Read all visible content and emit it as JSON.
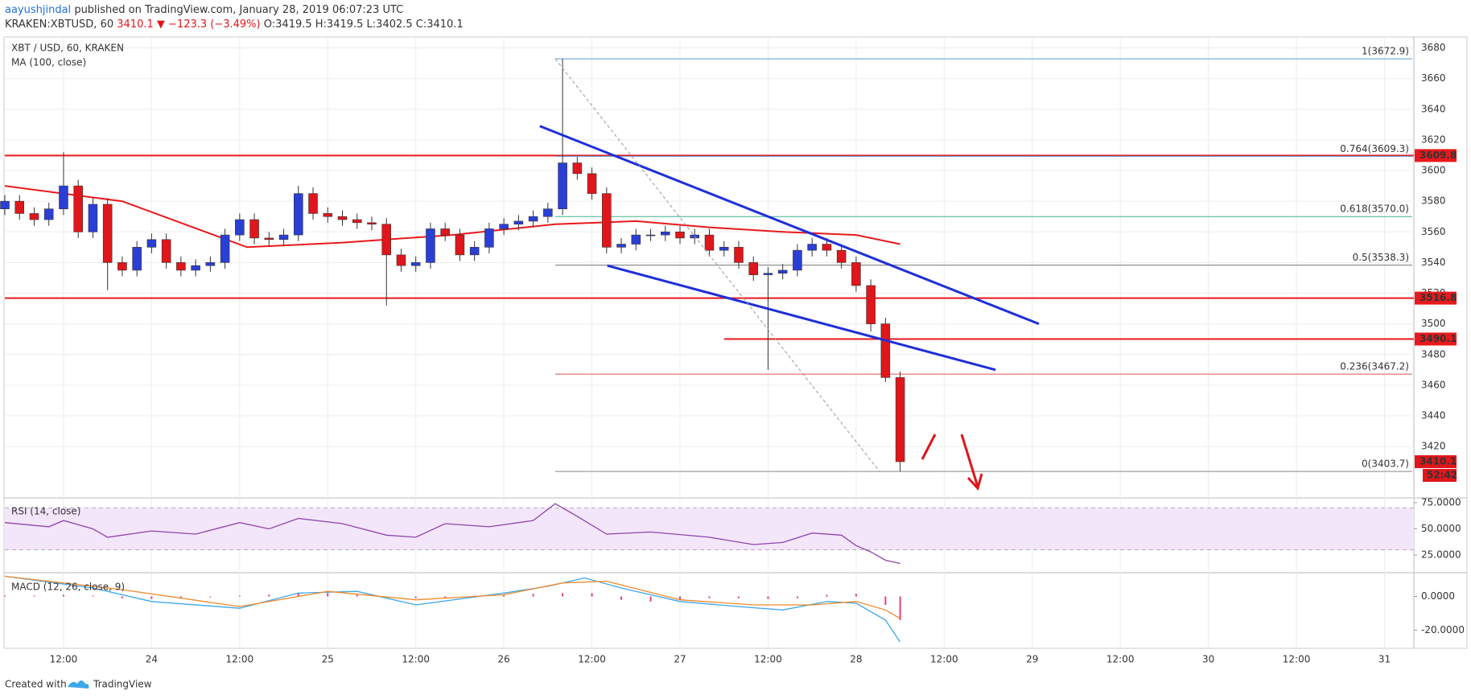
{
  "header": {
    "author": "aayushjindal",
    "published": "published on TradingView.com, January 28, 2019 06:07:23 UTC",
    "symbol": "KRAKEN:XBTUSD, 60",
    "last": "3410.1",
    "change": "▼ −123.3 (−3.49%)",
    "ohlc": "O:3419.5 H:3419.5 L:3402.5 C:3410.1"
  },
  "footer": {
    "created": "Created with",
    "brand": "TradingView"
  },
  "chart_data": {
    "type": "candlestick",
    "title": "XBT / USD, 60, KRAKEN",
    "up_color": "#2a3fd6",
    "down_color": "#e0161b",
    "x": [
      4,
      6,
      8,
      10,
      12,
      14,
      16,
      18,
      20,
      22,
      24,
      26,
      28,
      30,
      32,
      34,
      36,
      38,
      40,
      42,
      44,
      46,
      48,
      50,
      52,
      54,
      56,
      58,
      60,
      62,
      64,
      66,
      68,
      70,
      72,
      74,
      76,
      78,
      80,
      82,
      84,
      86,
      88,
      90,
      92,
      94,
      96,
      98,
      100,
      102,
      104,
      106,
      108,
      110,
      112,
      114,
      116,
      118,
      120,
      122,
      124,
      126
    ],
    "open": [
      3575,
      3580,
      3572,
      3568,
      3575,
      3590,
      3560,
      3578,
      3540,
      3535,
      3550,
      3555,
      3540,
      3535,
      3538,
      3540,
      3558,
      3568,
      3556,
      3555,
      3558,
      3585,
      3572,
      3570,
      3568,
      3566,
      3565,
      3545,
      3538,
      3540,
      3562,
      3558,
      3545,
      3550,
      3562,
      3565,
      3567,
      3570,
      3575,
      3605,
      3598,
      3585,
      3550,
      3552,
      3558,
      3558,
      3560,
      3556,
      3558,
      3548,
      3550,
      3540,
      3532,
      3533,
      3535,
      3548,
      3552,
      3548,
      3540,
      3525,
      3500,
      3465
    ],
    "high": [
      3584,
      3584,
      3576,
      3579,
      3612,
      3594,
      3582,
      3582,
      3544,
      3554,
      3559,
      3559,
      3544,
      3542,
      3544,
      3562,
      3572,
      3572,
      3560,
      3562,
      3590,
      3589,
      3576,
      3574,
      3572,
      3570,
      3569,
      3549,
      3544,
      3566,
      3566,
      3562,
      3554,
      3566,
      3569,
      3571,
      3574,
      3579,
      3672.9,
      3609,
      3602,
      3589,
      3556,
      3562,
      3562,
      3564,
      3564,
      3562,
      3562,
      3554,
      3554,
      3544,
      3537,
      3539,
      3552,
      3556,
      3556,
      3552,
      3544,
      3529,
      3504,
      3469
    ],
    "low": [
      3571,
      3568,
      3564,
      3564,
      3571,
      3556,
      3556,
      3522,
      3531,
      3531,
      3546,
      3536,
      3531,
      3531,
      3534,
      3536,
      3554,
      3552,
      3551,
      3551,
      3554,
      3568,
      3566,
      3564,
      3562,
      3561,
      3512,
      3534,
      3534,
      3536,
      3554,
      3541,
      3541,
      3546,
      3558,
      3561,
      3563,
      3566,
      3571,
      3594,
      3581,
      3546,
      3546,
      3548,
      3554,
      3554,
      3552,
      3552,
      3544,
      3544,
      3536,
      3528,
      3470,
      3529,
      3531,
      3544,
      3544,
      3536,
      3521,
      3495,
      3462,
      3403.7
    ],
    "close": [
      3580,
      3572,
      3568,
      3575,
      3590,
      3560,
      3578,
      3540,
      3535,
      3550,
      3555,
      3540,
      3535,
      3538,
      3540,
      3558,
      3568,
      3556,
      3555,
      3558,
      3585,
      3572,
      3570,
      3568,
      3566,
      3565,
      3545,
      3538,
      3540,
      3562,
      3558,
      3545,
      3550,
      3562,
      3565,
      3567,
      3570,
      3575,
      3605,
      3598,
      3585,
      3550,
      3552,
      3558,
      3558,
      3560,
      3556,
      3558,
      3548,
      3550,
      3540,
      3532,
      3533,
      3535,
      3548,
      3552,
      3548,
      3540,
      3525,
      3500,
      3465,
      3410.1
    ],
    "xlim": [
      4,
      196
    ],
    "xticks": [
      {
        "value": 12,
        "label": "12:00"
      },
      {
        "value": 24,
        "label": "24"
      },
      {
        "value": 36,
        "label": "12:00"
      },
      {
        "value": 48,
        "label": "25"
      },
      {
        "value": 60,
        "label": "12:00"
      },
      {
        "value": 72,
        "label": "26"
      },
      {
        "value": 84,
        "label": "12:00"
      },
      {
        "value": 96,
        "label": "27"
      },
      {
        "value": 108,
        "label": "12:00"
      },
      {
        "value": 120,
        "label": "28"
      },
      {
        "value": 132,
        "label": "12:00"
      },
      {
        "value": 144,
        "label": "29"
      },
      {
        "value": 156,
        "label": "12:00"
      },
      {
        "value": 168,
        "label": "30"
      },
      {
        "value": 180,
        "label": "12:00"
      },
      {
        "value": 192,
        "label": "31"
      }
    ],
    "ylim": [
      3387,
      3686.6
    ],
    "yticks": [
      3420,
      3440,
      3460,
      3480,
      3500,
      3520,
      3540,
      3560,
      3580,
      3600,
      3620,
      3640,
      3660,
      3680
    ],
    "grid": true,
    "ma": {
      "name": "MA (100, close)",
      "color": "#e8191c",
      "x": [
        4,
        20,
        37,
        50,
        65,
        79,
        90,
        100,
        110,
        120,
        126
      ],
      "values": [
        3590,
        3580,
        3550,
        3553,
        3558,
        3565,
        3567,
        3563,
        3560,
        3558,
        3552
      ]
    },
    "hlines": [
      {
        "value": 3609.8,
        "color": "#e8191c"
      },
      {
        "value": 3516.8,
        "color": "#e8191c"
      },
      {
        "value": 3490.1,
        "color": "#e8191c",
        "start": 102
      }
    ],
    "last_price": 3410.1,
    "countdown": "52:42",
    "fib": {
      "start": 79,
      "levels": [
        {
          "label": "1(3672.9)",
          "value": 3672.9,
          "color": "#5b9bd5"
        },
        {
          "label": "0.764(3609.3)",
          "value": 3609.3,
          "color": "#5b9bd5"
        },
        {
          "label": "0.618(3570.0)",
          "value": 3570.0,
          "color": "#3cb38d"
        },
        {
          "label": "0.5(3538.3)",
          "value": 3538.3,
          "color": "#777777"
        },
        {
          "label": "0.236(3467.2)",
          "value": 3467.2,
          "color": "#e05353"
        },
        {
          "label": "0(3403.7)",
          "value": 3403.7,
          "color": "#888888"
        }
      ]
    },
    "trendlines": [
      {
        "x": [
          76.9,
          144.9
        ],
        "y": [
          3629,
          3500
        ],
        "color": "#1f2fd8"
      },
      {
        "x": [
          86.1,
          139
        ],
        "y": [
          3538,
          3470
        ],
        "color": "#1f2fd8"
      }
    ],
    "diagonal": {
      "x": [
        79,
        123.2
      ],
      "y": [
        3672.9,
        3403.7
      ],
      "color": "#999999"
    },
    "rsi": {
      "title": "RSI (14, close)",
      "color": "#8e44ad",
      "band": [
        30,
        70
      ],
      "x": [
        4,
        10,
        12,
        16,
        18,
        24,
        30,
        36,
        40,
        44,
        50,
        56,
        60,
        64,
        70,
        76,
        79,
        82,
        86,
        92,
        100,
        106,
        110,
        114,
        118,
        120,
        122,
        124,
        126
      ],
      "values": [
        56,
        52,
        58,
        50,
        42,
        48,
        45,
        56,
        50,
        60,
        55,
        44,
        42,
        55,
        52,
        58,
        74,
        62,
        45,
        47,
        42,
        35,
        37,
        46,
        44,
        34,
        28,
        20,
        17
      ],
      "ylim": [
        8.9,
        78.8
      ],
      "yticks": [
        {
          "value": 75,
          "label": "75.0000"
        },
        {
          "value": 50,
          "label": "50.0000"
        },
        {
          "value": 25,
          "label": "25.0000"
        }
      ]
    },
    "macd": {
      "title": "MACD (12, 26, close, 9)",
      "ylim": [
        -29.8,
        13.6
      ],
      "yticks": [
        {
          "value": 0,
          "label": "0.0000"
        },
        {
          "value": -20,
          "label": "-20.0000"
        }
      ],
      "macd": {
        "color": "#3fa7e8",
        "x": [
          4,
          16,
          24,
          36,
          44,
          52,
          60,
          72,
          78,
          83,
          88,
          96,
          104,
          110,
          116,
          120,
          124,
          126
        ],
        "values": [
          12,
          5,
          -3,
          -7,
          2,
          3,
          -5,
          2,
          6,
          11,
          5,
          -3,
          -6,
          -8,
          -3,
          -4,
          -14,
          -27
        ]
      },
      "signal": {
        "color": "#f08a2a",
        "x": [
          4,
          20,
          36,
          48,
          60,
          72,
          80,
          86,
          96,
          106,
          114,
          120,
          124,
          126
        ],
        "values": [
          12,
          4,
          -6,
          3,
          -2,
          1,
          8,
          9,
          -2,
          -5,
          -5,
          -3,
          -8,
          -13
        ]
      },
      "histogram": {
        "color": "#e0407a",
        "x": [
          4,
          8,
          12,
          16,
          20,
          24,
          28,
          32,
          36,
          40,
          44,
          48,
          52,
          56,
          60,
          64,
          68,
          72,
          76,
          80,
          84,
          88,
          92,
          96,
          100,
          104,
          108,
          112,
          116,
          120,
          124,
          126
        ],
        "values": [
          0.5,
          0.5,
          1,
          0.5,
          -1,
          -1.5,
          -1,
          -0.5,
          0.5,
          1,
          2,
          2,
          1,
          -0.5,
          -1,
          -1,
          0.5,
          1,
          1.5,
          2,
          2,
          -2,
          -3,
          -2,
          -1,
          -1,
          -1.5,
          -1,
          1,
          1.5,
          -5,
          -14
        ]
      }
    }
  }
}
